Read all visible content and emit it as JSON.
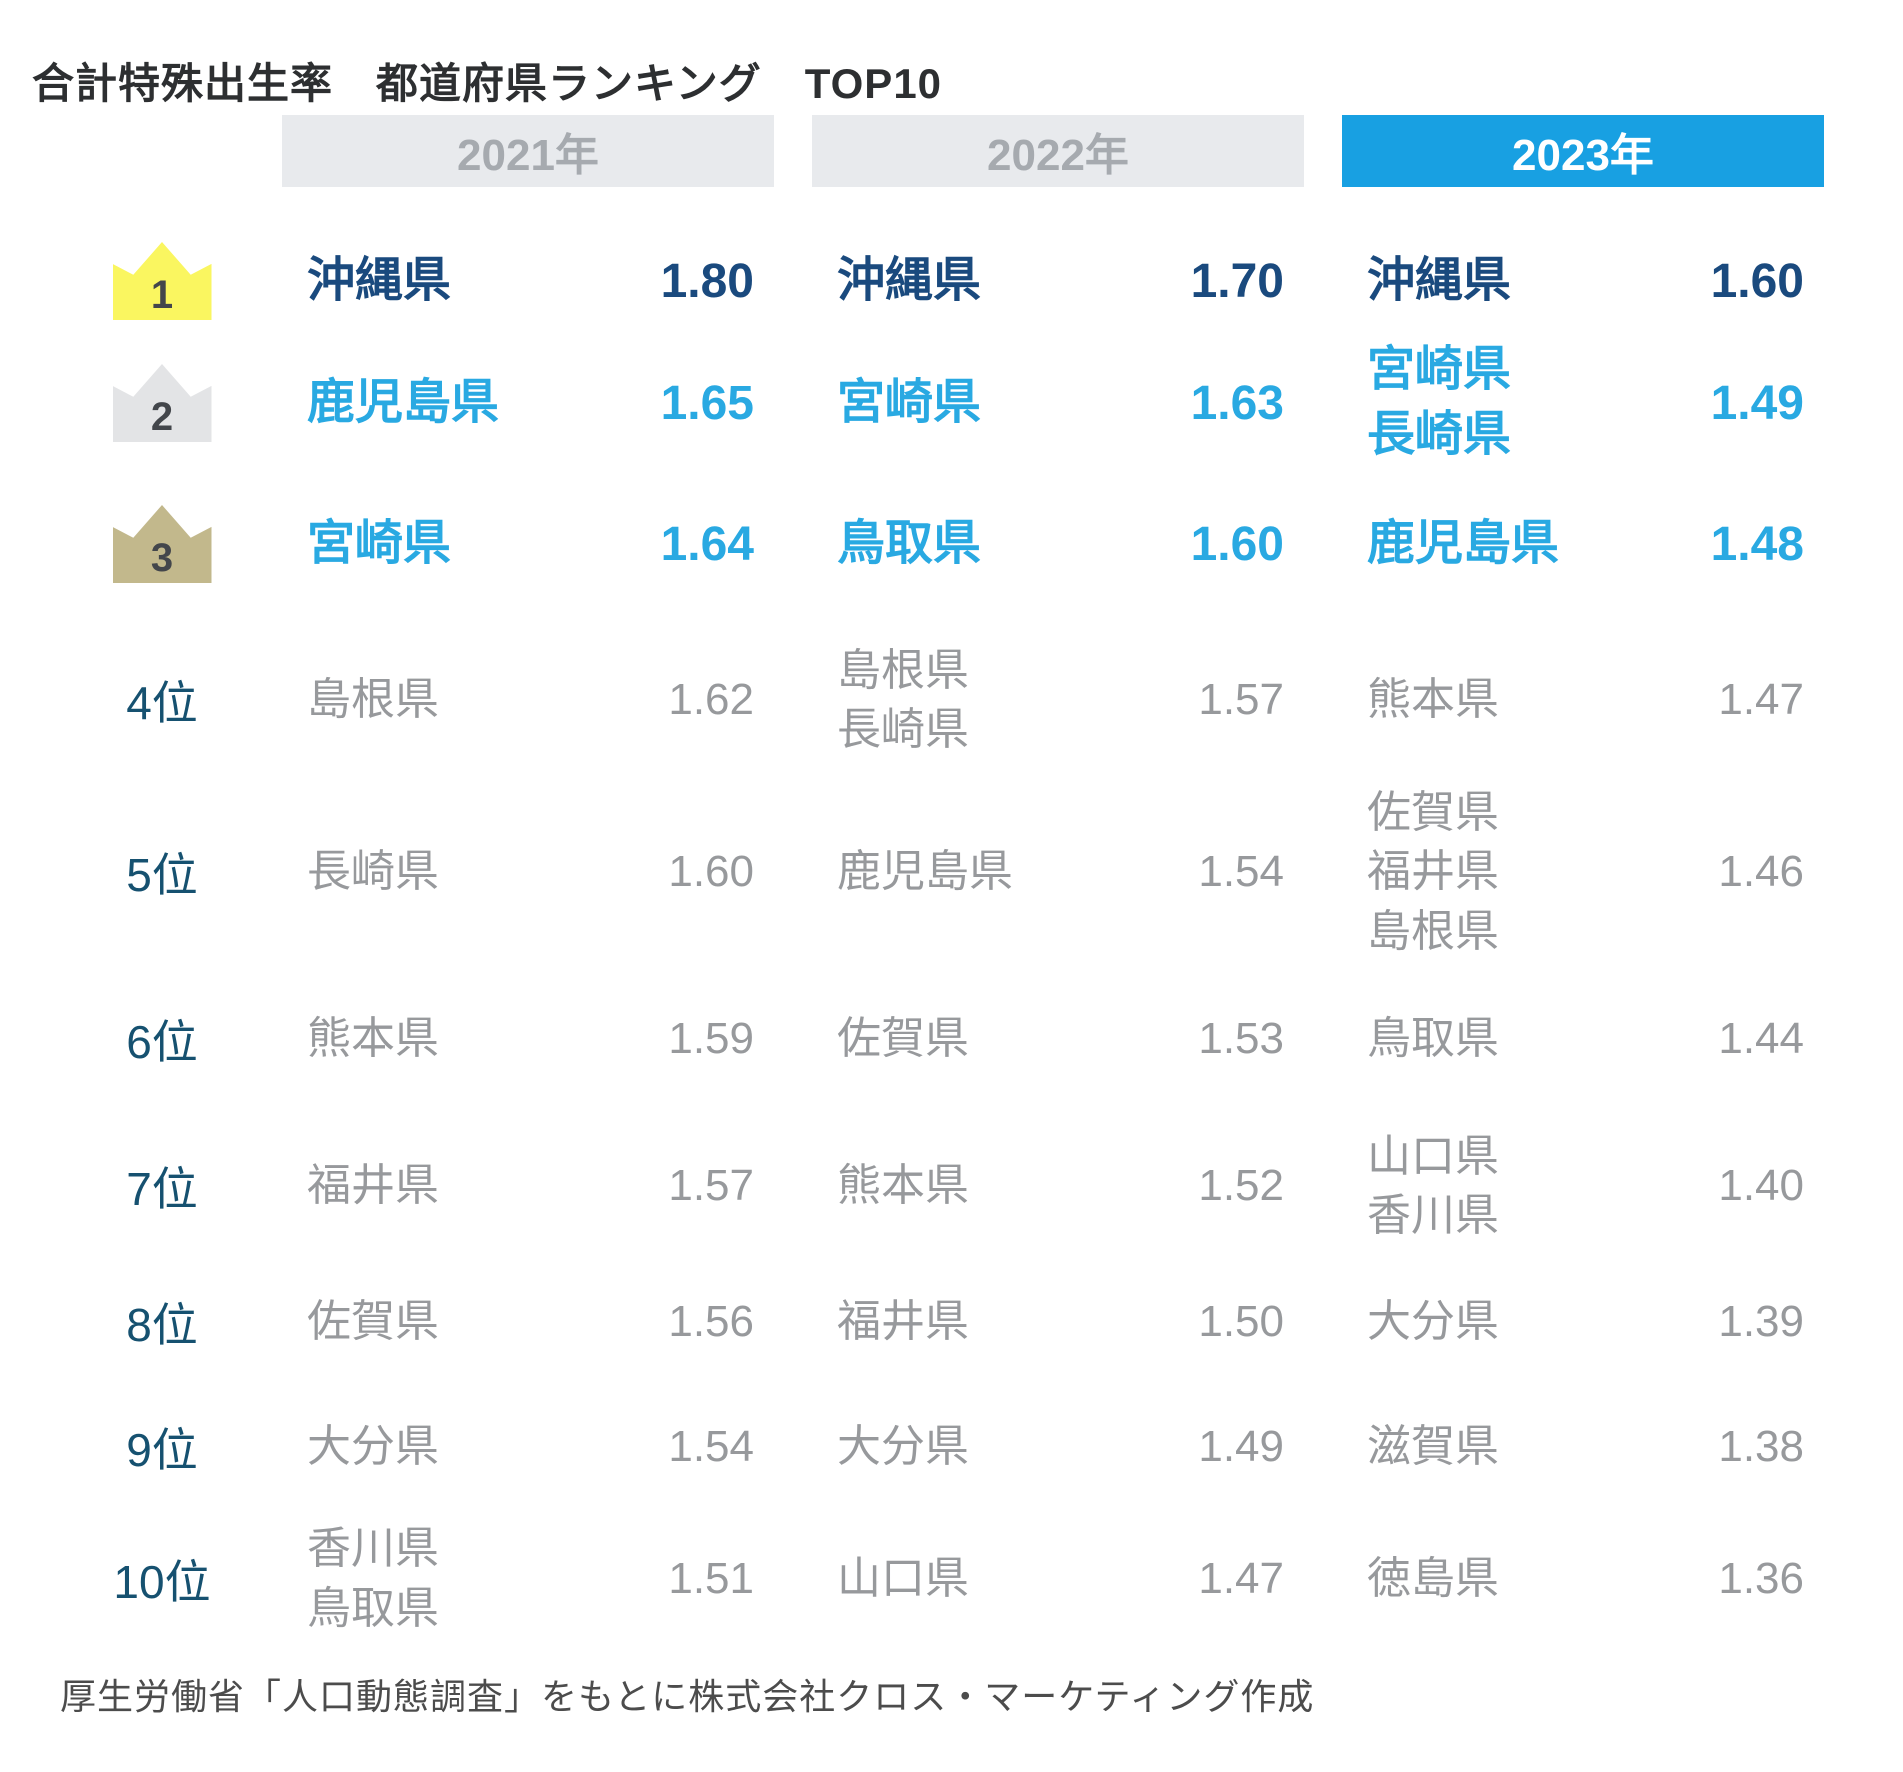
{
  "title": "合計特殊出生率　都道府県ランキング　TOP10",
  "source_note": "厚生労働省「人口動態調査」をもとに株式会社クロス・マーケティング作成",
  "theme": {
    "accent_blue": "#18a0e2",
    "navy": "#1a4a7e",
    "light_blue": "#29a9e2",
    "gray_text": "#97999c",
    "muted_header_bg": "#e8eaed",
    "muted_header_text": "#a6aaaf",
    "crown_gold": "#faf660",
    "crown_silver": "#e3e4e6",
    "crown_bronze": "#c2b88c",
    "crown_number": "#43464b",
    "rank_label": "#165170",
    "title_text": "#2d2f31",
    "source_text": "#4c4c4c"
  },
  "table": {
    "columns": [
      "2021年",
      "2022年",
      "2023年"
    ],
    "active_column": "2023年",
    "rows": [
      {
        "rank": "1",
        "tier": "gold",
        "cells": [
          {
            "name": "沖縄県",
            "value": "1.80"
          },
          {
            "name": "沖縄県",
            "value": "1.70"
          },
          {
            "name": "沖縄県",
            "value": "1.60"
          }
        ]
      },
      {
        "rank": "2",
        "tier": "silver",
        "cells": [
          {
            "name": "鹿児島県",
            "value": "1.65"
          },
          {
            "name": "宮崎県",
            "value": "1.63"
          },
          {
            "name": "宮崎県\n長崎県",
            "value": "1.49"
          }
        ]
      },
      {
        "rank": "3",
        "tier": "bronze",
        "cells": [
          {
            "name": "宮崎県",
            "value": "1.64"
          },
          {
            "name": "鳥取県",
            "value": "1.60"
          },
          {
            "name": "鹿児島県",
            "value": "1.48"
          }
        ]
      },
      {
        "rank": "4位",
        "tier": "plain",
        "cells": [
          {
            "name": "島根県",
            "value": "1.62"
          },
          {
            "name": "島根県\n長崎県",
            "value": "1.57"
          },
          {
            "name": "熊本県",
            "value": "1.47"
          }
        ]
      },
      {
        "rank": "5位",
        "tier": "plain",
        "cells": [
          {
            "name": "長崎県",
            "value": "1.60"
          },
          {
            "name": "鹿児島県",
            "value": "1.54"
          },
          {
            "name": "佐賀県\n福井県\n島根県",
            "value": "1.46"
          }
        ]
      },
      {
        "rank": "6位",
        "tier": "plain",
        "cells": [
          {
            "name": "熊本県",
            "value": "1.59"
          },
          {
            "name": "佐賀県",
            "value": "1.53"
          },
          {
            "name": "鳥取県",
            "value": "1.44"
          }
        ]
      },
      {
        "rank": "7位",
        "tier": "plain",
        "cells": [
          {
            "name": "福井県",
            "value": "1.57"
          },
          {
            "name": "熊本県",
            "value": "1.52"
          },
          {
            "name": "山口県\n香川県",
            "value": "1.40"
          }
        ]
      },
      {
        "rank": "8位",
        "tier": "plain",
        "cells": [
          {
            "name": "佐賀県",
            "value": "1.56"
          },
          {
            "name": "福井県",
            "value": "1.50"
          },
          {
            "name": "大分県",
            "value": "1.39"
          }
        ]
      },
      {
        "rank": "9位",
        "tier": "plain",
        "cells": [
          {
            "name": "大分県",
            "value": "1.54"
          },
          {
            "name": "大分県",
            "value": "1.49"
          },
          {
            "name": "滋賀県",
            "value": "1.38"
          }
        ]
      },
      {
        "rank": "10位",
        "tier": "plain",
        "cells": [
          {
            "name": "香川県\n鳥取県",
            "value": "1.51"
          },
          {
            "name": "山口県",
            "value": "1.47"
          },
          {
            "name": "徳島県",
            "value": "1.36"
          }
        ]
      }
    ]
  },
  "chart_data": {
    "type": "table",
    "title": "合計特殊出生率　都道府県ランキング　TOP10",
    "categories": [
      "2021年",
      "2022年",
      "2023年"
    ],
    "series": [
      {
        "name": "2021年",
        "ranking": [
          {
            "rank": 1,
            "prefectures": [
              "沖縄県"
            ],
            "value": 1.8
          },
          {
            "rank": 2,
            "prefectures": [
              "鹿児島県"
            ],
            "value": 1.65
          },
          {
            "rank": 3,
            "prefectures": [
              "宮崎県"
            ],
            "value": 1.64
          },
          {
            "rank": 4,
            "prefectures": [
              "島根県"
            ],
            "value": 1.62
          },
          {
            "rank": 5,
            "prefectures": [
              "長崎県"
            ],
            "value": 1.6
          },
          {
            "rank": 6,
            "prefectures": [
              "熊本県"
            ],
            "value": 1.59
          },
          {
            "rank": 7,
            "prefectures": [
              "福井県"
            ],
            "value": 1.57
          },
          {
            "rank": 8,
            "prefectures": [
              "佐賀県"
            ],
            "value": 1.56
          },
          {
            "rank": 9,
            "prefectures": [
              "大分県"
            ],
            "value": 1.54
          },
          {
            "rank": 10,
            "prefectures": [
              "香川県",
              "鳥取県"
            ],
            "value": 1.51
          }
        ]
      },
      {
        "name": "2022年",
        "ranking": [
          {
            "rank": 1,
            "prefectures": [
              "沖縄県"
            ],
            "value": 1.7
          },
          {
            "rank": 2,
            "prefectures": [
              "宮崎県"
            ],
            "value": 1.63
          },
          {
            "rank": 3,
            "prefectures": [
              "鳥取県"
            ],
            "value": 1.6
          },
          {
            "rank": 4,
            "prefectures": [
              "島根県",
              "長崎県"
            ],
            "value": 1.57
          },
          {
            "rank": 5,
            "prefectures": [
              "鹿児島県"
            ],
            "value": 1.54
          },
          {
            "rank": 6,
            "prefectures": [
              "佐賀県"
            ],
            "value": 1.53
          },
          {
            "rank": 7,
            "prefectures": [
              "熊本県"
            ],
            "value": 1.52
          },
          {
            "rank": 8,
            "prefectures": [
              "福井県"
            ],
            "value": 1.5
          },
          {
            "rank": 9,
            "prefectures": [
              "大分県"
            ],
            "value": 1.49
          },
          {
            "rank": 10,
            "prefectures": [
              "山口県"
            ],
            "value": 1.47
          }
        ]
      },
      {
        "name": "2023年",
        "ranking": [
          {
            "rank": 1,
            "prefectures": [
              "沖縄県"
            ],
            "value": 1.6
          },
          {
            "rank": 2,
            "prefectures": [
              "宮崎県",
              "長崎県"
            ],
            "value": 1.49
          },
          {
            "rank": 3,
            "prefectures": [
              "鹿児島県"
            ],
            "value": 1.48
          },
          {
            "rank": 4,
            "prefectures": [
              "熊本県"
            ],
            "value": 1.47
          },
          {
            "rank": 5,
            "prefectures": [
              "佐賀県",
              "福井県",
              "島根県"
            ],
            "value": 1.46
          },
          {
            "rank": 6,
            "prefectures": [
              "鳥取県"
            ],
            "value": 1.44
          },
          {
            "rank": 7,
            "prefectures": [
              "山口県",
              "香川県"
            ],
            "value": 1.4
          },
          {
            "rank": 8,
            "prefectures": [
              "大分県"
            ],
            "value": 1.39
          },
          {
            "rank": 9,
            "prefectures": [
              "滋賀県"
            ],
            "value": 1.38
          },
          {
            "rank": 10,
            "prefectures": [
              "徳島県"
            ],
            "value": 1.36
          }
        ]
      }
    ],
    "source": "厚生労働省「人口動態調査」をもとに株式会社クロス・マーケティング作成"
  }
}
